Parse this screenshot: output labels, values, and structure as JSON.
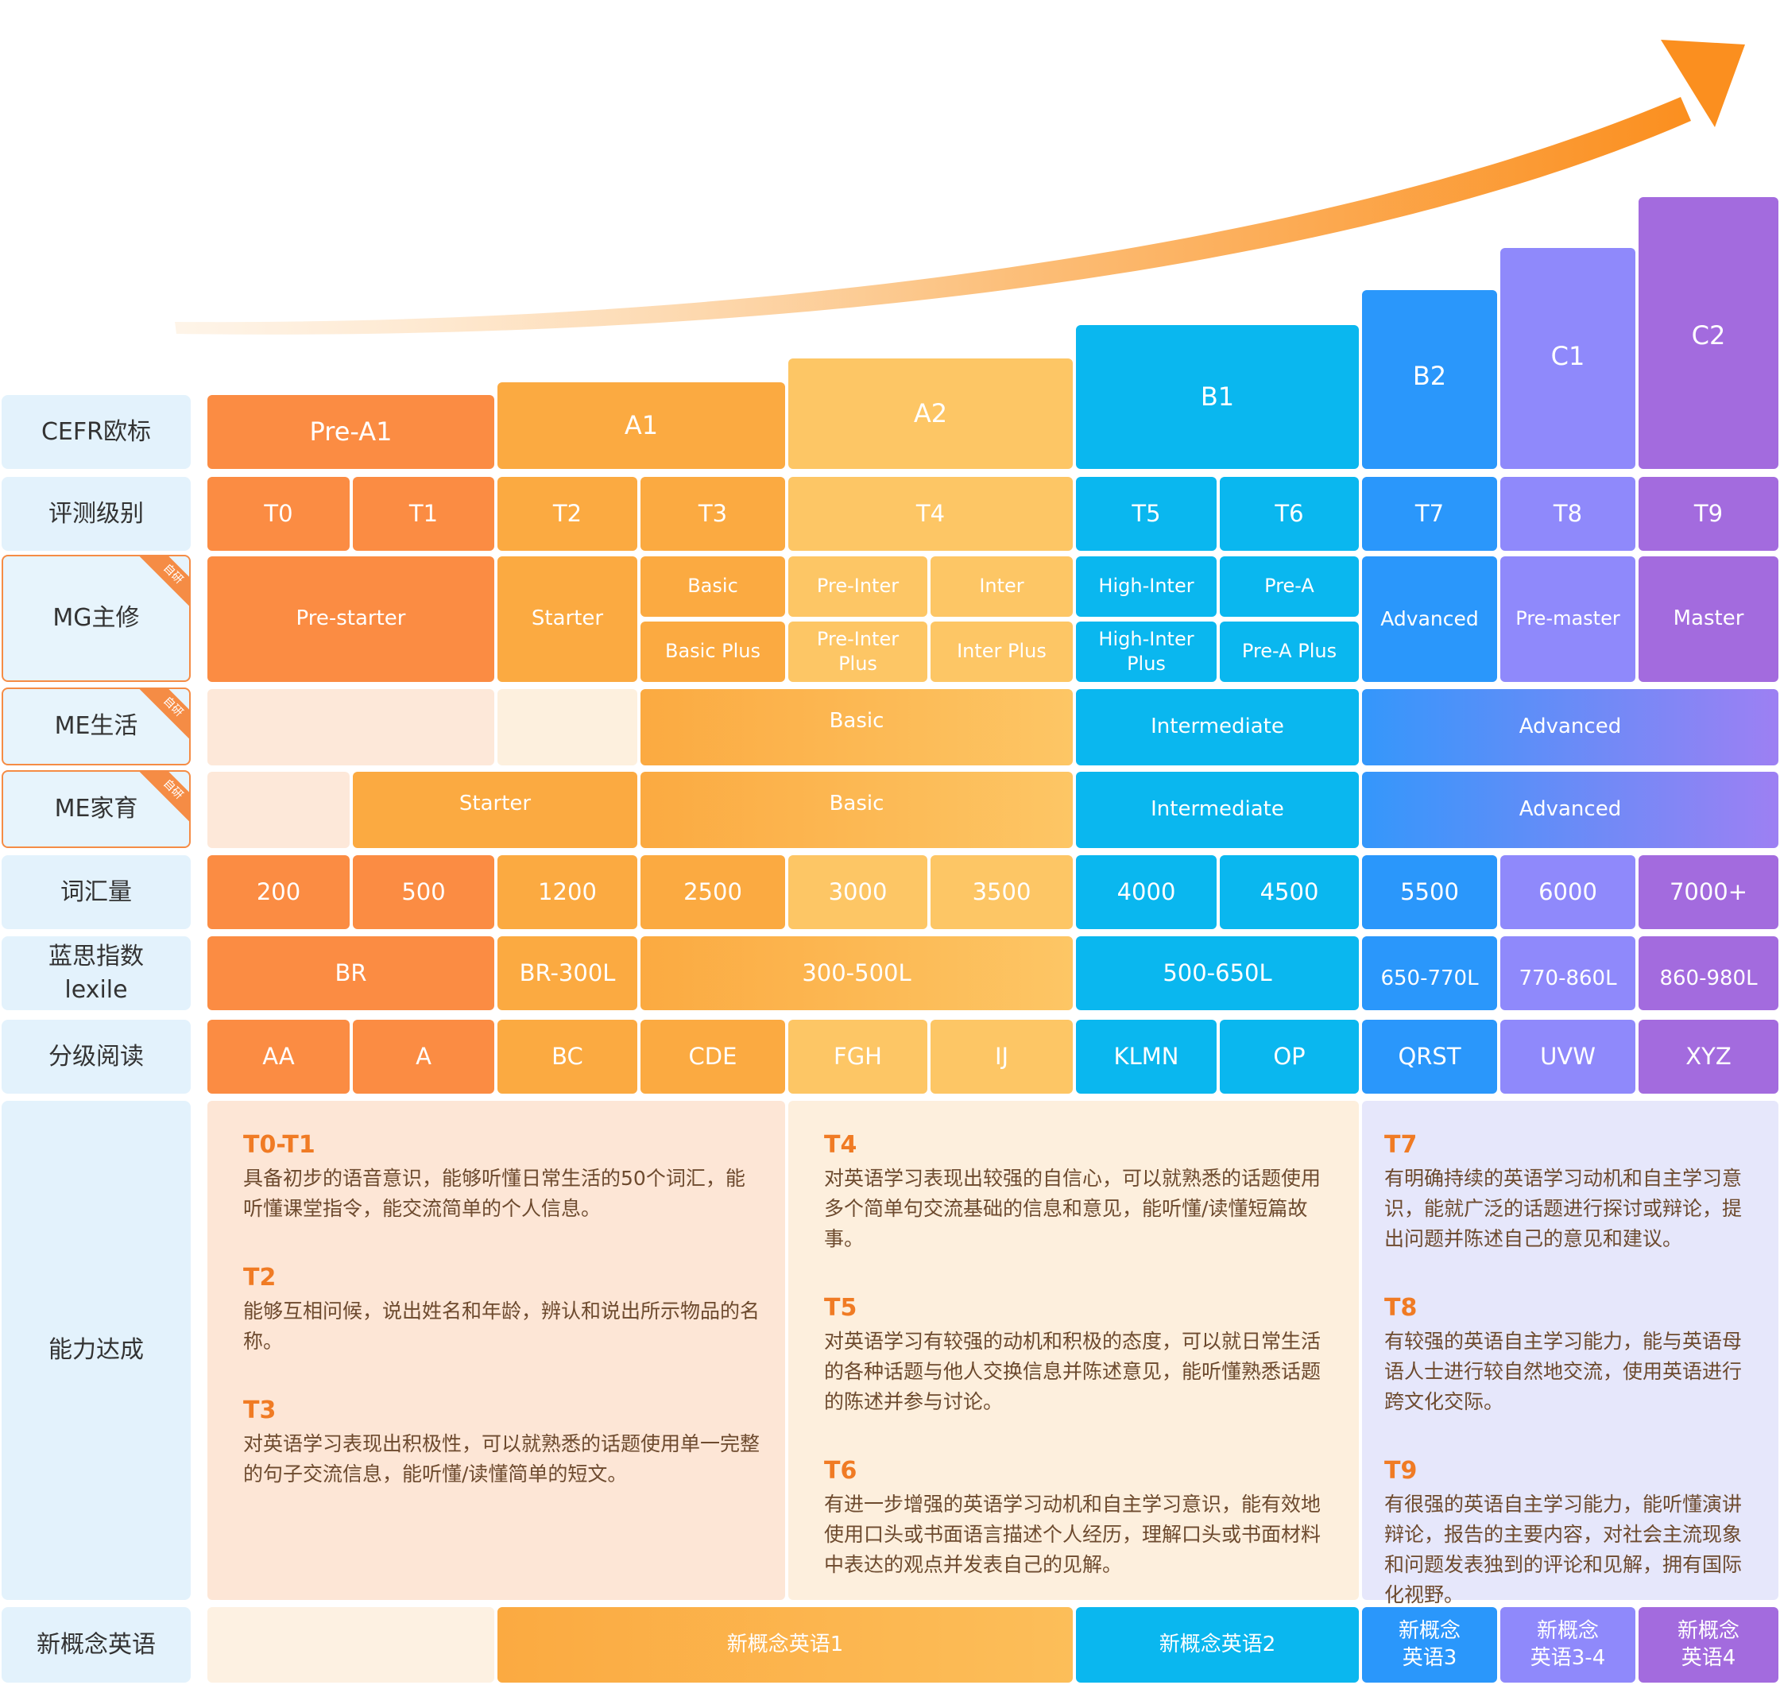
{
  "row_labels": {
    "cefr": "CEFR欧标",
    "level": "评测级别",
    "mg": "MG主修",
    "me_life": "ME生活",
    "me_family": "ME家育",
    "vocab": "词汇量",
    "lexile": "蓝思指数\nlexile",
    "graded": "分级阅读",
    "ability": "能力达成",
    "nce": "新概念英语"
  },
  "badge": "自研",
  "cefr": [
    "Pre-A1",
    "A1",
    "A2",
    "B1",
    "B2",
    "C1",
    "C2"
  ],
  "levels": [
    "T0",
    "T1",
    "T2",
    "T3",
    "T4",
    "T5",
    "T6",
    "T7",
    "T8",
    "T9"
  ],
  "mg": {
    "pre_starter": "Pre-starter",
    "starter": "Starter",
    "basic": "Basic",
    "basic_plus": "Basic Plus",
    "pre_inter": "Pre-Inter",
    "inter": "Inter",
    "pre_inter_plus": "Pre-Inter\nPlus",
    "inter_plus": "Inter Plus",
    "high_inter": "High-Inter",
    "pre_a": "Pre-A",
    "high_inter_plus": "High-Inter\nPlus",
    "pre_a_plus": "Pre-A Plus",
    "advanced": "Advanced",
    "pre_master": "Pre-master",
    "master": "Master"
  },
  "me_life": {
    "basic": "Basic",
    "intermediate": "Intermediate",
    "advanced": "Advanced"
  },
  "me_family": {
    "starter": "Starter",
    "basic": "Basic",
    "intermediate": "Intermediate",
    "advanced": "Advanced"
  },
  "vocab": [
    "200",
    "500",
    "1200",
    "2500",
    "3000",
    "3500",
    "4000",
    "4500",
    "5500",
    "6000",
    "7000+"
  ],
  "lexile": [
    "BR",
    "BR-300L",
    "300-500L",
    "500-650L",
    "650-770L",
    "770-860L",
    "860-980L"
  ],
  "graded": [
    "AA",
    "A",
    "BC",
    "CDE",
    "FGH",
    "IJ",
    "KLMN",
    "OP",
    "QRST",
    "UVW",
    "XYZ"
  ],
  "ability": {
    "col1": [
      {
        "title": "T0-T1",
        "text": "具备初步的语音意识，能够听懂日常生活的50个词汇，能听懂课堂指令，能交流简单的个人信息。"
      },
      {
        "title": "T2",
        "text": "能够互相问候，说出姓名和年龄，辨认和说出所示物品的名称。"
      },
      {
        "title": "T3",
        "text": "对英语学习表现出积极性，可以就熟悉的话题使用单一完整的句子交流信息，能听懂/读懂简单的短文。"
      }
    ],
    "col2": [
      {
        "title": "T4",
        "text": "对英语学习表现出较强的自信心，可以就熟悉的话题使用多个简单句交流基础的信息和意见，能听懂/读懂短篇故事。"
      },
      {
        "title": "T5",
        "text": "对英语学习有较强的动机和积极的态度，可以就日常生活的各种话题与他人交换信息并陈述意见，能听懂熟悉话题的陈述并参与讨论。"
      },
      {
        "title": "T6",
        "text": "有进一步增强的英语学习动机和自主学习意识，能有效地使用口头或书面语言描述个人经历，理解口头或书面材料中表达的观点并发表自己的见解。"
      }
    ],
    "col3": [
      {
        "title": "T7",
        "text": "有明确持续的英语学习动机和自主学习意识，能就广泛的话题进行探讨或辩论，提出问题并陈述自己的意见和建议。"
      },
      {
        "title": "T8",
        "text": "有较强的英语自主学习能力，能与英语母语人士进行较自然地交流，使用英语进行跨文化交际。"
      },
      {
        "title": "T9",
        "text": "有很强的英语自主学习能力，能听懂演讲辩论，报告的主要内容，对社会主流现象和问题发表独到的评论和见解，拥有国际化视野。"
      }
    ]
  },
  "nce": [
    "新概念英语1",
    "新概念英语2",
    "新概念\n英语3",
    "新概念\n英语3-4",
    "新概念\n英语4"
  ],
  "colors": {
    "orange": "#fb8c43",
    "amber": "#fbaa41",
    "yellow": "#fdc665",
    "cyan": "#0ab7ef",
    "blue": "#2a97fb",
    "periwinkle": "#8f89fb",
    "violet": "#a36bde",
    "arrow": "#fb8f1f"
  }
}
